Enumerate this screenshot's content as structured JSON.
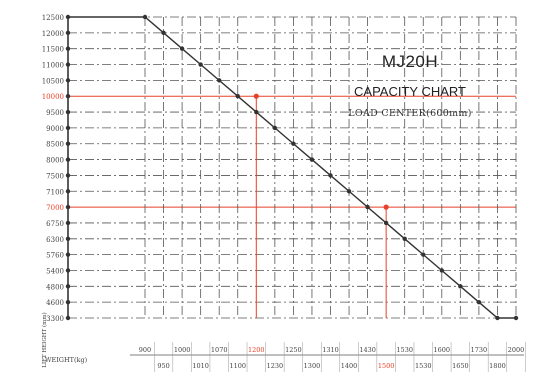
{
  "chart_data": {
    "type": "line",
    "title": "MJ20H",
    "subtitle": "CAPACITY CHART",
    "note": "LOAD CENTER(600mm)",
    "ylabel": "LIFT HEIGHT (mm)",
    "xlabel": "WEIGHT(kg)",
    "y_ticks": [
      12500,
      12000,
      11500,
      11000,
      10500,
      10000,
      9500,
      9000,
      8500,
      8000,
      7500,
      7100,
      7000,
      6750,
      6300,
      5760,
      5400,
      4800,
      4600,
      3300
    ],
    "y_highlight": [
      10000,
      7000
    ],
    "x_ticks_top": [
      "900",
      "1000",
      "1070",
      "1200",
      "1250",
      "1310",
      "1430",
      "1530",
      "1600",
      "1730",
      "2000"
    ],
    "x_ticks_bottom": [
      "950",
      "1010",
      "1100",
      "1230",
      "1300",
      "1400",
      "1500",
      "1530",
      "1650",
      "1800"
    ],
    "x_highlight": [
      "1200",
      "1500"
    ],
    "series": [
      {
        "x": [
          900,
          950,
          1000,
          1010,
          1070,
          1100,
          1200,
          1230,
          1250,
          1300,
          1310,
          1400,
          1430,
          1500,
          1530,
          1530,
          1600,
          1650,
          1730,
          1800,
          2000
        ],
        "y": [
          12500,
          12000,
          11500,
          11000,
          10500,
          10000,
          9500,
          9000,
          8500,
          8000,
          7500,
          7100,
          7000,
          6750,
          6300,
          5760,
          5400,
          4800,
          4600,
          3300,
          3300
        ]
      }
    ],
    "colors": {
      "line": "#333333",
      "grid": "#555555",
      "highlight": "#e8402a",
      "tick_text": "#444444"
    },
    "grid": true,
    "grid_style": "dash-dot"
  }
}
